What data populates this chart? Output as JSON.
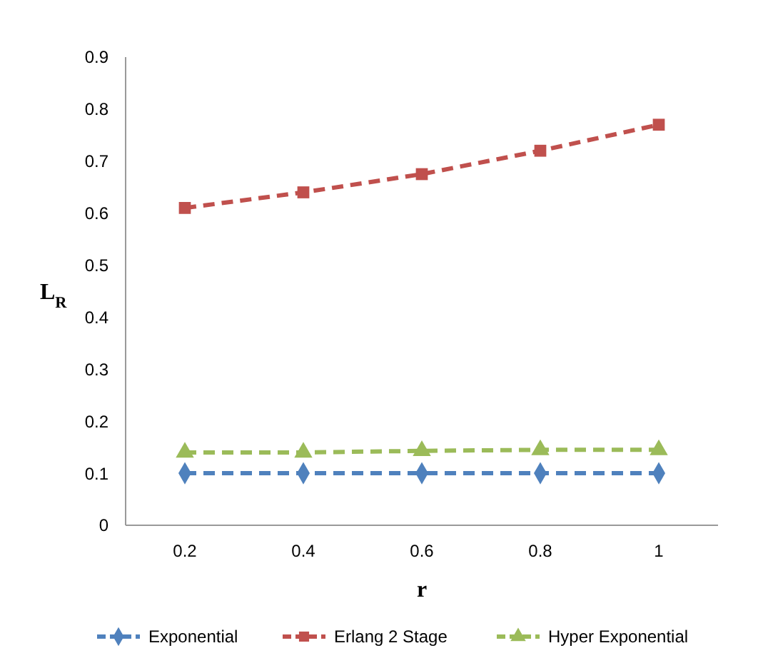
{
  "chart_data": {
    "type": "line",
    "xlabel": "r",
    "ylabel": "L$_{R}$",
    "categories": [
      "0.2",
      "0.4",
      "0.6",
      "0.8",
      "1"
    ],
    "series": [
      {
        "name": "Exponential",
        "color": "#4f81bd",
        "marker": "diamond",
        "values": [
          0.1,
          0.1,
          0.1,
          0.1,
          0.1
        ]
      },
      {
        "name": "Erlang 2 Stage",
        "color": "#c0504d",
        "marker": "square",
        "values": [
          0.61,
          0.64,
          0.675,
          0.72,
          0.77
        ]
      },
      {
        "name": "Hyper Exponential",
        "color": "#9bbb59",
        "marker": "triangle",
        "values": [
          0.14,
          0.14,
          0.143,
          0.145,
          0.145
        ]
      }
    ],
    "ylim": [
      0,
      0.9
    ],
    "yticks": [
      0,
      0.1,
      0.2,
      0.3,
      0.4,
      0.5,
      0.6,
      0.7,
      0.8,
      0.9
    ],
    "grid": false,
    "legend": "bottom",
    "line_style": "dashed"
  }
}
